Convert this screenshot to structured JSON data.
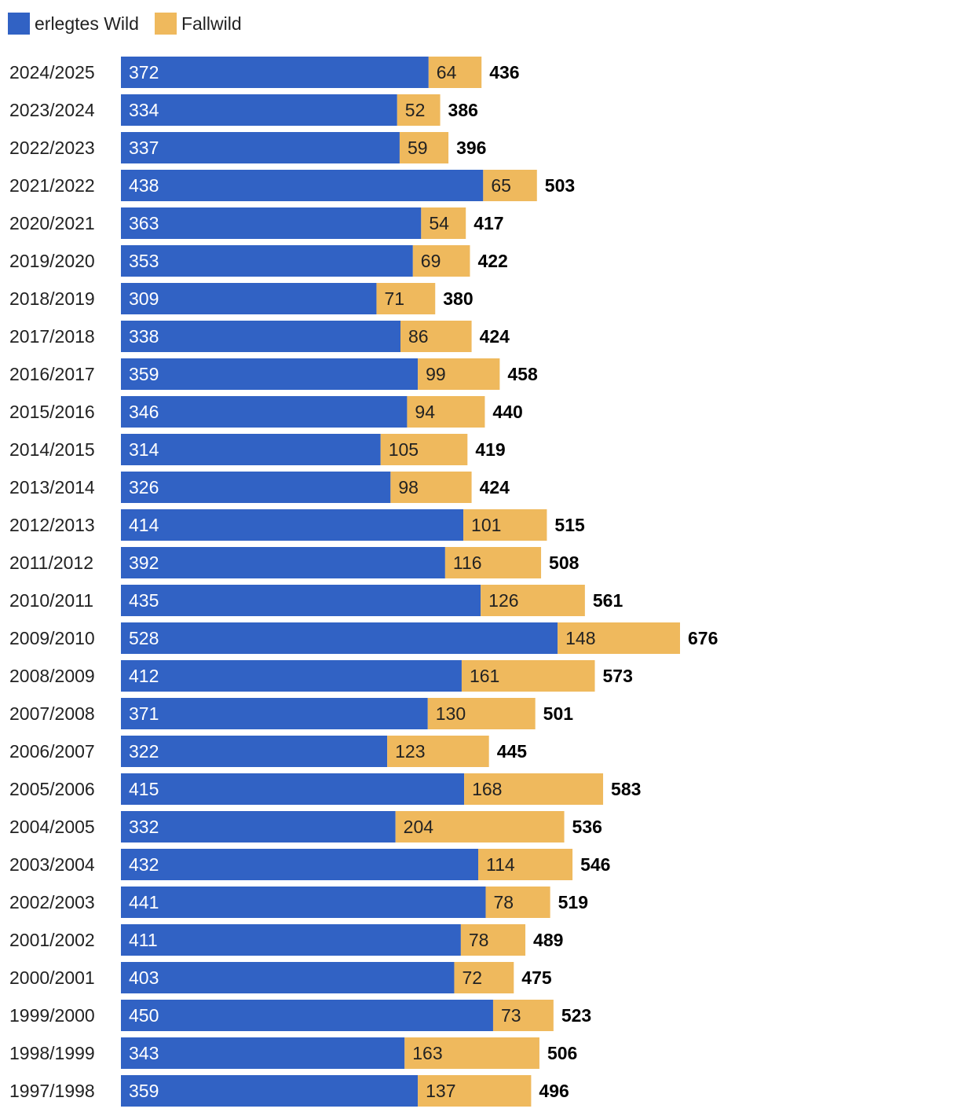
{
  "colors": {
    "erlegt": "#3162c4",
    "fallwild": "#efb95d",
    "label_dark": "#000000",
    "label_light": "#ffffff"
  },
  "chart_data": {
    "type": "bar",
    "orientation": "horizontal",
    "stacked": true,
    "legend_position": "top-left",
    "categories": [
      "2024/2025",
      "2023/2024",
      "2022/2023",
      "2021/2022",
      "2020/2021",
      "2019/2020",
      "2018/2019",
      "2017/2018",
      "2016/2017",
      "2015/2016",
      "2014/2015",
      "2013/2014",
      "2012/2013",
      "2011/2012",
      "2010/2011",
      "2009/2010",
      "2008/2009",
      "2007/2008",
      "2006/2007",
      "2005/2006",
      "2004/2005",
      "2003/2004",
      "2002/2003",
      "2001/2002",
      "2000/2001",
      "1999/2000",
      "1998/1999",
      "1997/1998"
    ],
    "series": [
      {
        "name": "erlegtes Wild",
        "values": [
          372,
          334,
          337,
          438,
          363,
          353,
          309,
          338,
          359,
          346,
          314,
          326,
          414,
          392,
          435,
          528,
          412,
          371,
          322,
          415,
          332,
          432,
          441,
          411,
          403,
          450,
          343,
          359
        ]
      },
      {
        "name": "Fallwild",
        "values": [
          64,
          52,
          59,
          65,
          54,
          69,
          71,
          86,
          99,
          94,
          105,
          98,
          101,
          116,
          126,
          148,
          161,
          130,
          123,
          168,
          204,
          114,
          78,
          78,
          72,
          73,
          163,
          137
        ]
      }
    ],
    "totals": [
      436,
      386,
      396,
      503,
      417,
      422,
      380,
      424,
      458,
      440,
      419,
      424,
      515,
      508,
      561,
      676,
      573,
      501,
      445,
      583,
      536,
      546,
      519,
      489,
      475,
      523,
      506,
      496
    ],
    "xlim": [
      0,
      676
    ],
    "grid": false
  }
}
